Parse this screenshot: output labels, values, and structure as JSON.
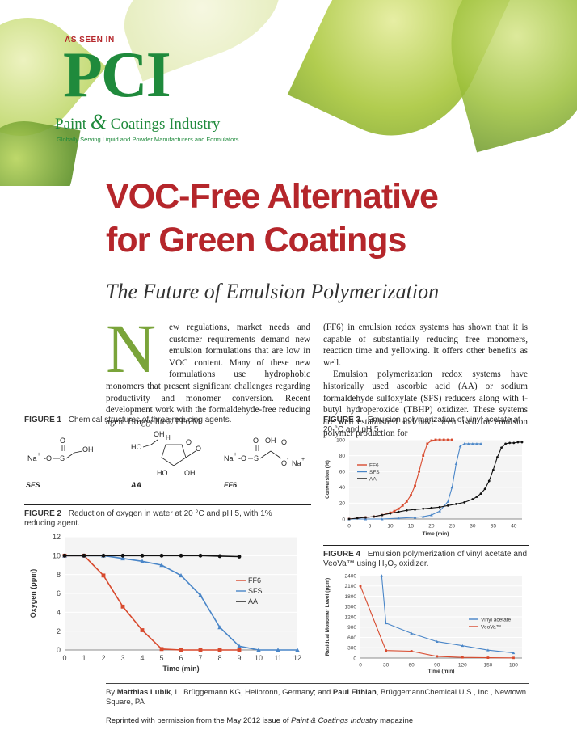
{
  "masthead": {
    "as_seen_in": "AS SEEN IN",
    "logo_letters": "PCI",
    "logo_name_a": "Paint",
    "logo_amp": "&",
    "logo_name_b": "Coatings Industry",
    "tagline": "Globally Serving Liquid and Powder Manufacturers and Formulators"
  },
  "article": {
    "title_line1": "VOC-Free Alternative",
    "title_line2": "for Green Coatings",
    "subtitle": "The Future of Emulsion Polymerization",
    "drop_cap": "N",
    "col1_first": "ew regulations, market needs and customer requirements demand new emulsion formulations that are low in VOC content. Many of these new formulations use hydrophobic monomers that present significant challenges regarding productivity and monomer conversion. Recent development work with the formaldehyde-free reducing agent Bruggolite® FF6 M",
    "col2_p1": "(FF6) in emulsion redox systems has shown that it is capable of substantially reducing free monomers, reaction time and yellowing. It offers other benefits as well.",
    "col2_p2": "Emulsion polymerization redox systems have historically used ascorbic acid (AA) or sodium formaldehyde sulfoxylate (SFS) reducers along with t-butyl hydroperoxide (TBHP) oxidizer. These systems are well established and have been used for emulsion polymer production for"
  },
  "figure1": {
    "label": "FIGURE 1",
    "caption": "Chemical structures of three reducing agents.",
    "names": [
      "SFS",
      "AA",
      "FF6"
    ]
  },
  "figure2": {
    "label": "FIGURE 2",
    "caption": "Reduction of oxygen in water at 20 °C and pH 5, with 1% reducing agent."
  },
  "figure3": {
    "label": "FIGURE 3",
    "caption": "Emulsion polymerization of vinyl acetate at 20 °C and pH 5."
  },
  "figure4": {
    "label": "FIGURE 4",
    "caption_a": "Emulsion polymerization of vinyl acetate and VeoVa™ using H",
    "caption_sub": "2",
    "caption_b": "O",
    "caption_sub2": "2",
    "caption_c": " oxidizer."
  },
  "byline": {
    "by": "By ",
    "author1": "Matthias Lubik",
    "aff1": ", L. Brüggemann KG, Heilbronn, Germany; and ",
    "author2": "Paul Fithian",
    "aff2": ", BrüggemannChemical U.S., Inc., Newtown Square, PA"
  },
  "reprint": {
    "text_a": "Reprinted with permission from the May 2012 issue of ",
    "magazine": "Paint & Coatings Industry",
    "text_b": " magazine"
  },
  "colors": {
    "title_red": "#b5262b",
    "logo_green": "#1f8a3c",
    "ff6": "#d84a2e",
    "sfs": "#4a86c8",
    "aa": "#111111"
  },
  "chart_data": [
    {
      "id": "figure2-chart",
      "type": "line",
      "xlabel": "Time (min)",
      "ylabel": "Oxygen (ppm)",
      "xlim": [
        0,
        12
      ],
      "ylim": [
        0,
        12
      ],
      "x_ticks": [
        "0",
        "1",
        "2",
        "3",
        "4",
        "5",
        "6",
        "7",
        "8",
        "9",
        "10",
        "11",
        "12"
      ],
      "y_ticks": [
        "0",
        "2",
        "4",
        "6",
        "8",
        "10",
        "12"
      ],
      "legend": "right",
      "series": [
        {
          "name": "FF6",
          "color": "#d84a2e",
          "x": [
            0,
            1,
            2,
            3,
            4,
            5,
            6,
            7,
            8,
            9
          ],
          "y": [
            10,
            10,
            7.9,
            4.6,
            2.1,
            0.1,
            0,
            0,
            0,
            0
          ]
        },
        {
          "name": "SFS",
          "color": "#4a86c8",
          "x": [
            0,
            1,
            2,
            3,
            4,
            5,
            6,
            7,
            8,
            9,
            10,
            11,
            12
          ],
          "y": [
            10,
            10,
            10,
            9.7,
            9.4,
            9.0,
            7.9,
            5.8,
            2.4,
            0.4,
            0,
            0,
            0
          ]
        },
        {
          "name": "AA",
          "color": "#111111",
          "x": [
            0,
            1,
            2,
            3,
            4,
            5,
            6,
            7,
            8,
            9
          ],
          "y": [
            10,
            10,
            10,
            10,
            10,
            10,
            10,
            10,
            9.95,
            9.9
          ]
        }
      ]
    },
    {
      "id": "figure3-chart",
      "type": "line",
      "xlabel": "Time (min)",
      "ylabel": "Conversion (%)",
      "xlim": [
        0,
        42
      ],
      "ylim": [
        0,
        100
      ],
      "x_ticks": [
        "0",
        "5",
        "10",
        "15",
        "20",
        "25",
        "30",
        "35",
        "40"
      ],
      "y_ticks": [
        "0",
        "20",
        "40",
        "60",
        "80",
        "100"
      ],
      "legend": "left",
      "series": [
        {
          "name": "FF6",
          "color": "#d84a2e",
          "x": [
            0,
            2,
            4,
            6,
            8,
            10,
            11,
            12,
            13,
            14,
            15,
            16,
            17,
            18,
            19,
            20,
            21,
            22,
            23,
            24,
            25
          ],
          "y": [
            0,
            1,
            2,
            3,
            5,
            8,
            10,
            13,
            17,
            22,
            30,
            42,
            60,
            80,
            95,
            99,
            100,
            100,
            100,
            100,
            100
          ]
        },
        {
          "name": "SFS",
          "color": "#4a86c8",
          "x": [
            0,
            4,
            8,
            12,
            16,
            18,
            20,
            22,
            24,
            25,
            26,
            27,
            28,
            29,
            30,
            31,
            32
          ],
          "y": [
            0,
            0,
            0,
            1,
            2,
            3,
            5,
            10,
            22,
            40,
            70,
            92,
            95,
            95,
            95,
            95,
            95
          ]
        },
        {
          "name": "AA",
          "color": "#111111",
          "x": [
            0,
            2,
            4,
            6,
            8,
            10,
            12,
            14,
            16,
            18,
            20,
            22,
            24,
            26,
            28,
            30,
            31,
            32,
            33,
            34,
            35,
            36,
            37,
            38,
            39,
            40,
            41,
            42
          ],
          "y": [
            0,
            1,
            2,
            3,
            5,
            7,
            9,
            11,
            12,
            13,
            14,
            15,
            17,
            19,
            21,
            25,
            28,
            32,
            38,
            48,
            62,
            78,
            90,
            95,
            96,
            96,
            97,
            97
          ]
        }
      ]
    },
    {
      "id": "figure4-chart",
      "type": "line",
      "xlabel": "Time (min)",
      "ylabel": "Residual Monomer Level (ppm)",
      "xlim": [
        0,
        190
      ],
      "ylim": [
        0,
        2400
      ],
      "x_ticks": [
        "0",
        "30",
        "60",
        "90",
        "120",
        "150",
        "180"
      ],
      "y_ticks": [
        "0",
        "300",
        "600",
        "900",
        "1200",
        "1500",
        "1800",
        "2100",
        "2400"
      ],
      "legend": "right",
      "series": [
        {
          "name": "Vinyl acetate",
          "color": "#4a86c8",
          "x": [
            25,
            30,
            60,
            90,
            120,
            150,
            180
          ],
          "y": [
            2400,
            1020,
            720,
            480,
            360,
            230,
            150
          ]
        },
        {
          "name": "VeoVa™",
          "color": "#d84a2e",
          "x": [
            0,
            30,
            60,
            90,
            120,
            150,
            180
          ],
          "y": [
            2100,
            220,
            200,
            50,
            20,
            10,
            5
          ]
        }
      ]
    }
  ]
}
